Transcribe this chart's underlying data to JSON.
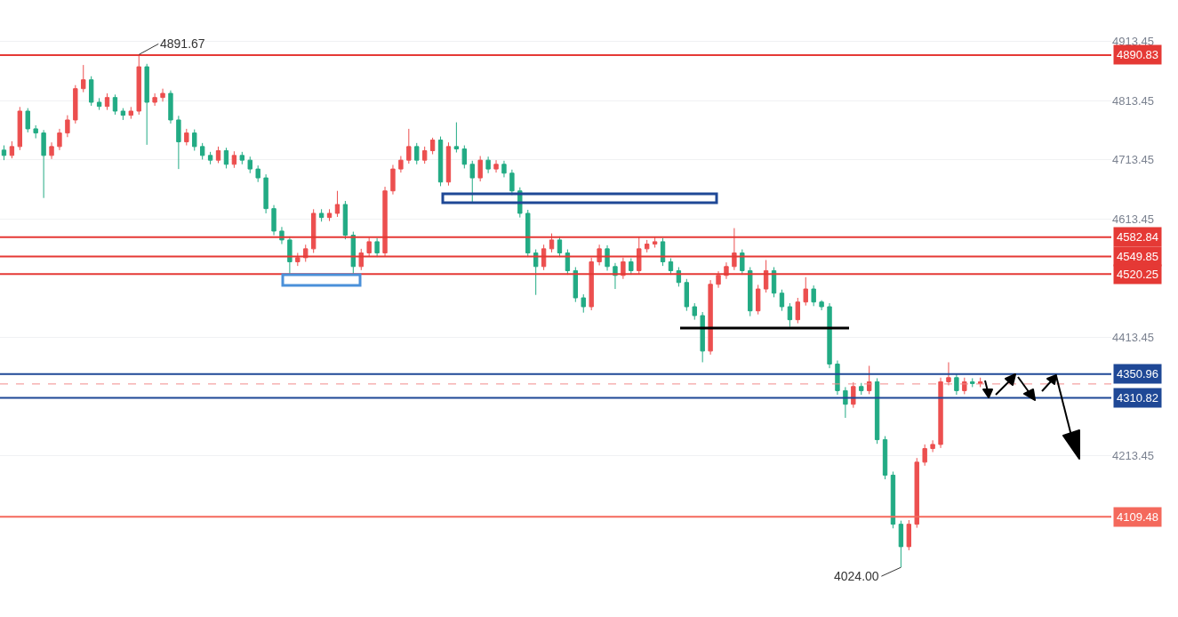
{
  "chart_data": {
    "type": "candlestick",
    "tick_labels": "y",
    "grid": "y",
    "categories": [
      null,
      null,
      null,
      null,
      null,
      null,
      null,
      null,
      null,
      null,
      null,
      null,
      null,
      null,
      null,
      null,
      null,
      null,
      null,
      null,
      null,
      null,
      null,
      null,
      null,
      null,
      null,
      null,
      null,
      null,
      null,
      null,
      null,
      null,
      null,
      null,
      null,
      null,
      null,
      null,
      null,
      null,
      null,
      null,
      null,
      null,
      null,
      null,
      null,
      null,
      null,
      null,
      null,
      null,
      null,
      null,
      null,
      null,
      null,
      null,
      null,
      null,
      null,
      null,
      null,
      null,
      null,
      null,
      null,
      null,
      null,
      null,
      null,
      null,
      null,
      null,
      null,
      null,
      null,
      null,
      null,
      null,
      null,
      null,
      null,
      null,
      null,
      null,
      null,
      null,
      null,
      null,
      null,
      null,
      null,
      null,
      null,
      null,
      null,
      null,
      null,
      null,
      null,
      null,
      null,
      null,
      null,
      null,
      null,
      null,
      null,
      null,
      null,
      null,
      null,
      null,
      null,
      null,
      null,
      null,
      null,
      null,
      null,
      null,
      null,
      null,
      null,
      null,
      null,
      null,
      null,
      null,
      null,
      null,
      null,
      null,
      null,
      null,
      null,
      null
    ],
    "ohlc": [
      [
        4730,
        4738,
        4713,
        4721
      ],
      [
        4721,
        4745,
        4716,
        4736
      ],
      [
        4736,
        4803,
        4730,
        4796
      ],
      [
        4796,
        4801,
        4760,
        4766
      ],
      [
        4766,
        4772,
        4750,
        4759
      ],
      [
        4759,
        4764,
        4649,
        4721
      ],
      [
        4721,
        4743,
        4715,
        4736
      ],
      [
        4736,
        4766,
        4730,
        4759
      ],
      [
        4759,
        4789,
        4752,
        4781
      ],
      [
        4781,
        4840,
        4775,
        4834
      ],
      [
        4834,
        4874,
        4828,
        4849
      ],
      [
        4849,
        4855,
        4805,
        4811
      ],
      [
        4811,
        4818,
        4798,
        4804
      ],
      [
        4804,
        4826,
        4798,
        4819
      ],
      [
        4819,
        4824,
        4790,
        4796
      ],
      [
        4796,
        4801,
        4781,
        4789
      ],
      [
        4789,
        4803,
        4783,
        4796
      ],
      [
        4796,
        4891.67,
        4790,
        4871
      ],
      [
        4871,
        4876,
        4739,
        4811
      ],
      [
        4811,
        4826,
        4805,
        4819
      ],
      [
        4819,
        4834,
        4812,
        4826
      ],
      [
        4826,
        4831,
        4775,
        4781
      ],
      [
        4781,
        4788,
        4698,
        4744
      ],
      [
        4744,
        4766,
        4738,
        4759
      ],
      [
        4759,
        4765,
        4729,
        4736
      ],
      [
        4736,
        4742,
        4714,
        4721
      ],
      [
        4721,
        4727,
        4706,
        4713
      ],
      [
        4713,
        4736,
        4708,
        4729
      ],
      [
        4729,
        4734,
        4699,
        4706
      ],
      [
        4706,
        4728,
        4700,
        4721
      ],
      [
        4721,
        4727,
        4706,
        4713
      ],
      [
        4713,
        4719,
        4691,
        4698
      ],
      [
        4698,
        4704,
        4676,
        4683
      ],
      [
        4683,
        4689,
        4623,
        4631
      ],
      [
        4631,
        4637,
        4586,
        4593
      ],
      [
        4593,
        4600,
        4571,
        4578
      ],
      [
        4578,
        4584,
        4521,
        4541
      ],
      [
        4541,
        4556,
        4534,
        4548
      ],
      [
        4548,
        4570,
        4541,
        4563
      ],
      [
        4563,
        4630,
        4556,
        4623
      ],
      [
        4623,
        4630,
        4609,
        4616
      ],
      [
        4616,
        4630,
        4610,
        4623
      ],
      [
        4623,
        4661,
        4617,
        4638
      ],
      [
        4638,
        4644,
        4579,
        4586
      ],
      [
        4586,
        4592,
        4518,
        4533
      ],
      [
        4533,
        4563,
        4527,
        4556
      ],
      [
        4556,
        4582,
        4550,
        4575
      ],
      [
        4575,
        4581,
        4549,
        4556
      ],
      [
        4556,
        4668,
        4550,
        4661
      ],
      [
        4661,
        4705,
        4655,
        4698
      ],
      [
        4698,
        4720,
        4692,
        4713
      ],
      [
        4713,
        4766,
        4707,
        4736
      ],
      [
        4736,
        4742,
        4706,
        4713
      ],
      [
        4713,
        4736,
        4707,
        4729
      ],
      [
        4729,
        4751,
        4723,
        4747
      ],
      [
        4747,
        4753,
        4669,
        4676
      ],
      [
        4676,
        4743,
        4670,
        4736
      ],
      [
        4736,
        4777,
        4726,
        4732
      ],
      [
        4732,
        4738,
        4699,
        4706
      ],
      [
        4706,
        4712,
        4641,
        4683
      ],
      [
        4683,
        4720,
        4677,
        4713
      ],
      [
        4713,
        4719,
        4691,
        4698
      ],
      [
        4698,
        4713,
        4692,
        4706
      ],
      [
        4706,
        4712,
        4684,
        4691
      ],
      [
        4691,
        4697,
        4654,
        4661
      ],
      [
        4661,
        4667,
        4616,
        4623
      ],
      [
        4623,
        4629,
        4549,
        4556
      ],
      [
        4556,
        4562,
        4485,
        4533
      ],
      [
        4533,
        4570,
        4527,
        4563
      ],
      [
        4563,
        4589,
        4557,
        4578
      ],
      [
        4578,
        4584,
        4549,
        4556
      ],
      [
        4556,
        4562,
        4519,
        4526
      ],
      [
        4526,
        4532,
        4473,
        4480
      ],
      [
        4480,
        4486,
        4455,
        4465
      ],
      [
        4465,
        4548,
        4459,
        4541
      ],
      [
        4541,
        4570,
        4535,
        4563
      ],
      [
        4563,
        4569,
        4526,
        4533
      ],
      [
        4533,
        4539,
        4495,
        4518
      ],
      [
        4518,
        4548,
        4512,
        4541
      ],
      [
        4541,
        4547,
        4519,
        4526
      ],
      [
        4526,
        4583,
        4520,
        4563
      ],
      [
        4563,
        4578,
        4557,
        4571
      ],
      [
        4571,
        4583,
        4565,
        4575
      ],
      [
        4575,
        4581,
        4534,
        4541
      ],
      [
        4541,
        4547,
        4519,
        4526
      ],
      [
        4526,
        4532,
        4499,
        4506
      ],
      [
        4506,
        4512,
        4458,
        4465
      ],
      [
        4465,
        4471,
        4443,
        4450
      ],
      [
        4450,
        4456,
        4371,
        4390
      ],
      [
        4390,
        4510,
        4384,
        4503
      ],
      [
        4503,
        4525,
        4497,
        4518
      ],
      [
        4518,
        4540,
        4512,
        4533
      ],
      [
        4533,
        4598,
        4527,
        4556
      ],
      [
        4556,
        4562,
        4519,
        4526
      ],
      [
        4526,
        4532,
        4449,
        4458
      ],
      [
        4458,
        4502,
        4452,
        4495
      ],
      [
        4495,
        4544,
        4489,
        4526
      ],
      [
        4526,
        4532,
        4481,
        4488
      ],
      [
        4488,
        4494,
        4458,
        4465
      ],
      [
        4465,
        4471,
        4431,
        4443
      ],
      [
        4443,
        4480,
        4437,
        4473
      ],
      [
        4473,
        4515,
        4467,
        4495
      ],
      [
        4495,
        4501,
        4466,
        4473
      ],
      [
        4473,
        4476,
        4459,
        4465
      ],
      [
        4465,
        4471,
        4361,
        4368
      ],
      [
        4368,
        4374,
        4316,
        4323
      ],
      [
        4323,
        4329,
        4277,
        4300
      ],
      [
        4300,
        4337,
        4294,
        4330
      ],
      [
        4330,
        4336,
        4316,
        4323
      ],
      [
        4323,
        4365,
        4317,
        4338
      ],
      [
        4338,
        4344,
        4233,
        4240
      ],
      [
        4240,
        4246,
        4173,
        4180
      ],
      [
        4180,
        4186,
        4090,
        4097
      ],
      [
        4097,
        4103,
        4024.0,
        4059
      ],
      [
        4059,
        4104,
        4053,
        4097
      ],
      [
        4097,
        4209,
        4091,
        4202
      ],
      [
        4202,
        4232,
        4196,
        4225
      ],
      [
        4225,
        4239,
        4219,
        4232
      ],
      [
        4232,
        4345,
        4226,
        4338
      ],
      [
        4338,
        4371,
        4332,
        4345
      ],
      [
        4345,
        4351,
        4316,
        4323
      ],
      [
        4323,
        4345,
        4317,
        4338
      ],
      [
        4338,
        4344,
        4329,
        4335
      ],
      [
        4335,
        4345,
        4329,
        4338
      ],
      null,
      null,
      null,
      null,
      null,
      null,
      null,
      null,
      null,
      null,
      null,
      null,
      null,
      null,
      null,
      null
    ],
    "ylim": [
      3940,
      4984
    ],
    "yticks": [
      4213.45,
      4413.45,
      4613.45,
      4713.45,
      4813.45,
      4913.45
    ],
    "ref_lines": [
      {
        "axis": "y",
        "value": 4890.83,
        "label": "4890.83",
        "color": "#e53935",
        "line_style": "solid"
      },
      {
        "axis": "y",
        "value": 4582.84,
        "label": "4582.84",
        "color": "#e53935",
        "line_style": "solid"
      },
      {
        "axis": "y",
        "value": 4549.85,
        "label": "4549.85",
        "color": "#e53935",
        "line_style": "solid"
      },
      {
        "axis": "y",
        "value": 4520.25,
        "label": "4520.25",
        "color": "#e53935",
        "line_style": "solid"
      },
      {
        "axis": "y",
        "value": 4350.96,
        "label": "4350.96",
        "color": "#1f4896",
        "line_style": "solid"
      },
      {
        "axis": "y",
        "value": 4310.82,
        "label": "4310.82",
        "color": "#1f4896",
        "line_style": "solid"
      },
      {
        "axis": "y",
        "value": 4334.3,
        "color": "#f28b8b",
        "line_style": "dashed"
      },
      {
        "axis": "y",
        "value": 4109.48,
        "label": "4109.48",
        "color": "#f4695c",
        "line_style": "solid"
      }
    ],
    "annotations": [
      {
        "text": "4891.67",
        "y": 4891.67
      },
      "4024.00"
    ]
  }
}
